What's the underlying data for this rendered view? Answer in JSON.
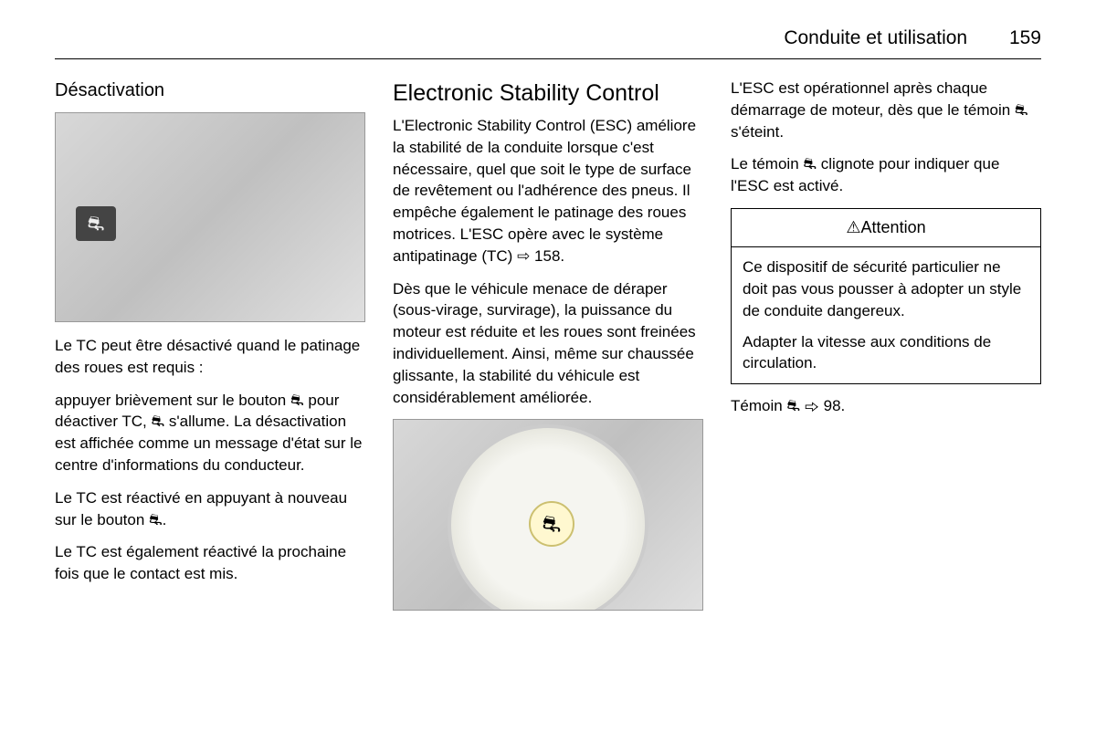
{
  "header": {
    "section": "Conduite et utilisation",
    "page": "159"
  },
  "col1": {
    "heading": "Désactivation",
    "p1": "Le TC peut être désactivé quand le patinage des roues est requis :",
    "p2": "appuyer brièvement sur le bouton ⛐ pour déactiver TC, ⛐ s'allume. La désactivation est affichée comme un message d'état sur le centre d'informations du conducteur.",
    "p3": "Le TC est réactivé en appuyant à nouveau sur le bouton ⛐.",
    "p4": "Le TC est également réactivé la prochaine fois que le contact est mis."
  },
  "col2": {
    "heading": "Electronic Stability Control",
    "p1": "L'Electronic Stability Control (ESC) améliore la stabilité de la conduite lorsque c'est nécessaire, quel que soit le type de surface de revêtement ou l'adhérence des pneus. Il empêche également le patinage des roues motrices. L'ESC opère avec le système antipatinage (TC) ⇨ 158.",
    "p2": "Dès que le véhicule menace de déraper (sous-virage, survirage), la puissance du moteur est réduite et les roues sont freinées individuellement. Ainsi, même sur chaussée glissante, la stabilité du véhicule est considérablement améliorée."
  },
  "col3": {
    "p1": "L'ESC est opérationnel après chaque démarrage de moteur, dès que le témoin ⛐ s'éteint.",
    "p2": "Le témoin ⛐ clignote pour indiquer que l'ESC est activé.",
    "attention_title": "⚠Attention",
    "attention_p1": "Ce dispositif de sécurité particulier ne doit pas vous pousser à adopter un style de conduite dangereux.",
    "attention_p2": "Adapter la vitesse aux conditions de circulation.",
    "p3": "Témoin ⛐ ⇨ 98."
  },
  "icons": {
    "esc_glyph": "⛐",
    "gauge_glyph": "⛐"
  }
}
